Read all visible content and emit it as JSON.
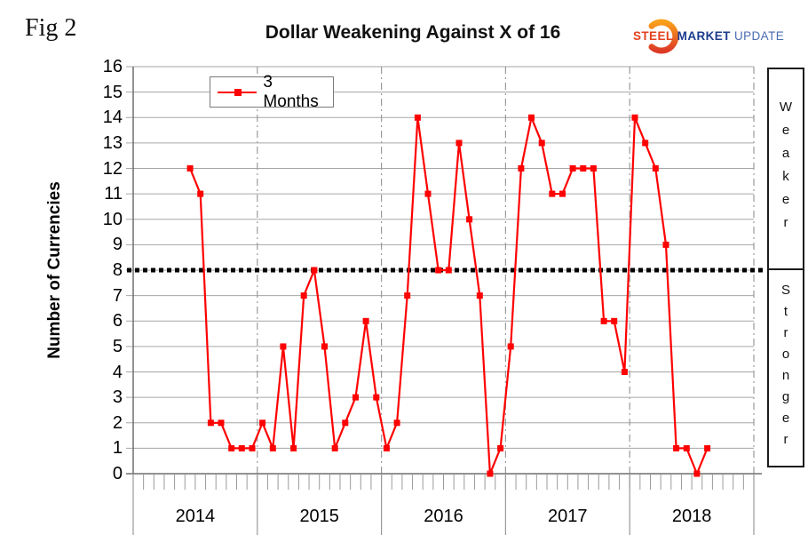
{
  "fig_label": "Fig 2",
  "title": "Dollar Weakening Against X of 16",
  "logo": {
    "steel": "STEEL",
    "market": "MARKET",
    "update": "UPDATE",
    "steel_color": "#e2421d",
    "market_color": "#1d3c8f",
    "update_color": "#4a6cb3",
    "swoosh_top_color": "#f9a01b",
    "swoosh_bottom_color": "#dd3a26"
  },
  "legend": {
    "label": "3 Months"
  },
  "y_axis_title": "Number of Currencies",
  "right_labels": {
    "upper": "Weaker",
    "lower": "Stronger"
  },
  "chart_data": {
    "type": "line",
    "title": "Dollar Weakening Against X of 16",
    "ylabel": "Number of Currencies",
    "ylim": [
      0,
      16
    ],
    "y_tick_step": 1,
    "grid": true,
    "legend_position": "top-left-inside",
    "threshold_line": 8,
    "x_year_labels": [
      "2014",
      "2015",
      "2016",
      "2017",
      "2018"
    ],
    "x": [
      "2014-06",
      "2014-07",
      "2014-08",
      "2014-09",
      "2014-10",
      "2014-11",
      "2014-12",
      "2015-01",
      "2015-02",
      "2015-03",
      "2015-04",
      "2015-05",
      "2015-06",
      "2015-07",
      "2015-08",
      "2015-09",
      "2015-10",
      "2015-11",
      "2015-12",
      "2016-01",
      "2016-02",
      "2016-03",
      "2016-04",
      "2016-05",
      "2016-06",
      "2016-07",
      "2016-08",
      "2016-09",
      "2016-10",
      "2016-11",
      "2016-12",
      "2017-01",
      "2017-02",
      "2017-03",
      "2017-04",
      "2017-05",
      "2017-06",
      "2017-07",
      "2017-08",
      "2017-09",
      "2017-10",
      "2017-11",
      "2017-12",
      "2018-01",
      "2018-02",
      "2018-03",
      "2018-04",
      "2018-05",
      "2018-06",
      "2018-07",
      "2018-08"
    ],
    "series": [
      {
        "name": "3 Months",
        "color": "#ff0000",
        "marker": "square",
        "values": [
          12,
          11,
          2,
          2,
          1,
          1,
          1,
          2,
          1,
          5,
          1,
          7,
          8,
          5,
          1,
          2,
          3,
          6,
          3,
          1,
          2,
          7,
          14,
          11,
          8,
          8,
          13,
          10,
          7,
          0,
          1,
          5,
          12,
          14,
          13,
          11,
          11,
          12,
          12,
          12,
          6,
          6,
          4,
          14,
          13,
          12,
          9,
          1,
          1,
          0,
          1
        ]
      }
    ]
  }
}
